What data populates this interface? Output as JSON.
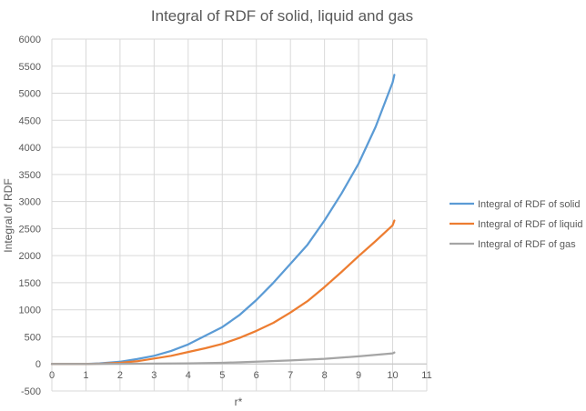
{
  "chart_data": {
    "type": "line",
    "title": "Integral of RDF of solid, liquid and gas",
    "xlabel": "r*",
    "ylabel": "Integral of RDF",
    "xlim": [
      0,
      11
    ],
    "ylim": [
      -500,
      6000
    ],
    "xticks": [
      "0",
      "1",
      "2",
      "3",
      "4",
      "5",
      "6",
      "7",
      "8",
      "9",
      "10",
      "11"
    ],
    "yticks": [
      "-500",
      "0",
      "500",
      "1000",
      "1500",
      "2000",
      "2500",
      "3000",
      "3500",
      "4000",
      "4500",
      "5000",
      "5500",
      "6000"
    ],
    "grid": true,
    "legend_position": "right",
    "series": [
      {
        "name": "Integral of RDF of solid",
        "color": "#5B9BD5",
        "x": [
          0,
          1,
          1.4,
          2,
          2.5,
          3,
          3.5,
          4,
          4.5,
          5,
          5.5,
          6,
          6.5,
          7,
          7.5,
          8,
          8.5,
          9,
          9.5,
          10,
          10.05
        ],
        "y": [
          0,
          0,
          10,
          40,
          90,
          150,
          240,
          360,
          520,
          680,
          900,
          1180,
          1500,
          1850,
          2200,
          2650,
          3150,
          3700,
          4380,
          5200,
          5340
        ]
      },
      {
        "name": "Integral of RDF of liquid",
        "color": "#ED7D31",
        "x": [
          0,
          1,
          1.5,
          2,
          2.5,
          3,
          3.5,
          4,
          4.5,
          5,
          5.5,
          6,
          6.5,
          7,
          7.5,
          8,
          8.5,
          9,
          9.5,
          10,
          10.05
        ],
        "y": [
          0,
          0,
          5,
          20,
          50,
          100,
          150,
          220,
          290,
          370,
          480,
          610,
          760,
          950,
          1160,
          1420,
          1700,
          1990,
          2270,
          2560,
          2650
        ]
      },
      {
        "name": "Integral of RDF of gas",
        "color": "#A5A5A5",
        "x": [
          0,
          1,
          2,
          3,
          4,
          5,
          6,
          7,
          8,
          9,
          10,
          10.05
        ],
        "y": [
          0,
          0,
          2,
          5,
          10,
          20,
          40,
          65,
          95,
          140,
          195,
          210
        ]
      }
    ]
  }
}
